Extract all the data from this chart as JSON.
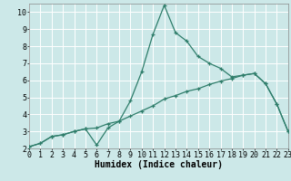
{
  "xlabel": "Humidex (Indice chaleur)",
  "bg_color": "#cce8e8",
  "line_color": "#2e7d6a",
  "grid_color": "#ffffff",
  "series1_x": [
    0,
    1,
    2,
    3,
    4,
    5,
    6,
    7,
    8,
    9,
    10,
    11,
    12,
    13,
    14,
    15,
    16,
    17,
    18,
    19,
    20,
    21,
    22,
    23
  ],
  "series1_y": [
    2.1,
    2.3,
    2.7,
    2.8,
    3.0,
    3.15,
    3.2,
    3.45,
    3.6,
    4.8,
    6.5,
    8.7,
    10.4,
    8.8,
    8.3,
    7.4,
    7.0,
    6.7,
    6.2,
    6.3,
    6.4,
    5.8,
    4.6,
    3.0
  ],
  "series2_x": [
    0,
    1,
    2,
    3,
    4,
    5,
    6,
    7,
    8,
    9,
    10,
    11,
    12,
    13,
    14,
    15,
    16,
    17,
    18,
    19,
    20,
    21,
    22,
    23
  ],
  "series2_y": [
    2.1,
    2.3,
    2.7,
    2.8,
    3.0,
    3.15,
    2.2,
    3.2,
    3.6,
    3.9,
    4.2,
    4.5,
    4.9,
    5.1,
    5.35,
    5.5,
    5.75,
    5.95,
    6.1,
    6.3,
    6.4,
    5.8,
    4.6,
    3.0
  ],
  "xlim": [
    0,
    23
  ],
  "ylim": [
    2.0,
    10.5
  ],
  "yticks": [
    2,
    3,
    4,
    5,
    6,
    7,
    8,
    9,
    10
  ],
  "xticks": [
    0,
    1,
    2,
    3,
    4,
    5,
    6,
    7,
    8,
    9,
    10,
    11,
    12,
    13,
    14,
    15,
    16,
    17,
    18,
    19,
    20,
    21,
    22,
    23
  ],
  "xlabel_fontsize": 7,
  "tick_fontsize": 6,
  "linewidth": 0.9,
  "markersize": 3.5
}
